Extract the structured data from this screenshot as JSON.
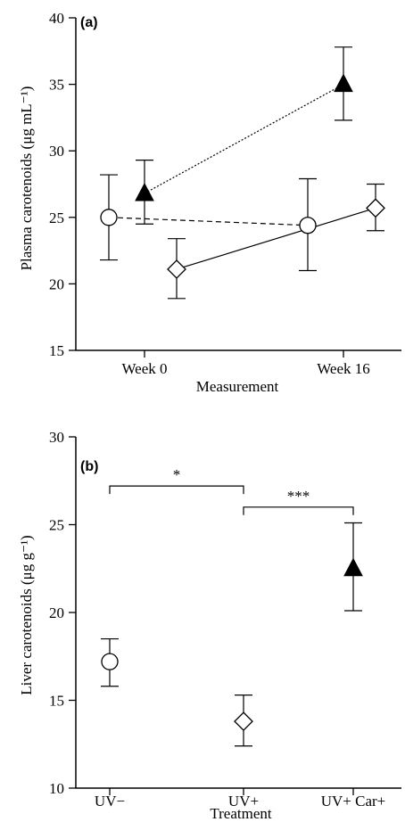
{
  "chart_data": [
    {
      "panel": "(a)",
      "type": "scatter",
      "xlabel": "Measurement",
      "ylabel": "Plasma carotenoids (μg mL⁻¹)",
      "ylim": [
        15,
        40
      ],
      "yticks": [
        15,
        20,
        25,
        30,
        35,
        40
      ],
      "categories": [
        "Week 0",
        "Week 16"
      ],
      "series": [
        {
          "marker": "circle",
          "line": "dashed",
          "x": [
            "Week 0",
            "Week 16"
          ],
          "y": [
            25.0,
            24.4
          ],
          "err_low": [
            21.8,
            21.0
          ],
          "err_high": [
            28.2,
            27.9
          ]
        },
        {
          "marker": "diamond",
          "line": "solid",
          "x": [
            "Week 0",
            "Week 16"
          ],
          "y": [
            21.1,
            25.7
          ],
          "err_low": [
            18.9,
            24.0
          ],
          "err_high": [
            23.4,
            27.5
          ]
        },
        {
          "marker": "triangle",
          "line": "dotted",
          "x": [
            "Week 0",
            "Week 16"
          ],
          "y": [
            26.8,
            35.0
          ],
          "err_low": [
            24.5,
            32.3
          ],
          "err_high": [
            29.3,
            37.8
          ]
        }
      ]
    },
    {
      "panel": "(b)",
      "type": "scatter",
      "xlabel": "Treatment",
      "ylabel": "Liver carotenoids (μg g⁻¹)",
      "ylim": [
        10,
        30
      ],
      "yticks": [
        10,
        15,
        20,
        25,
        30
      ],
      "categories": [
        "UV−",
        "UV+",
        "UV+ Car+"
      ],
      "points": [
        {
          "category": "UV−",
          "marker": "circle",
          "y": 17.2,
          "err_low": 15.8,
          "err_high": 18.5
        },
        {
          "category": "UV+",
          "marker": "diamond",
          "y": 13.8,
          "err_low": 12.4,
          "err_high": 15.3
        },
        {
          "category": "UV+ Car+",
          "marker": "triangle",
          "y": 22.5,
          "err_low": 20.1,
          "err_high": 25.1
        }
      ],
      "significance": [
        {
          "from": "UV−",
          "to": "UV+",
          "label": "*"
        },
        {
          "from": "UV+",
          "to": "UV+ Car+",
          "label": "***"
        }
      ]
    }
  ]
}
